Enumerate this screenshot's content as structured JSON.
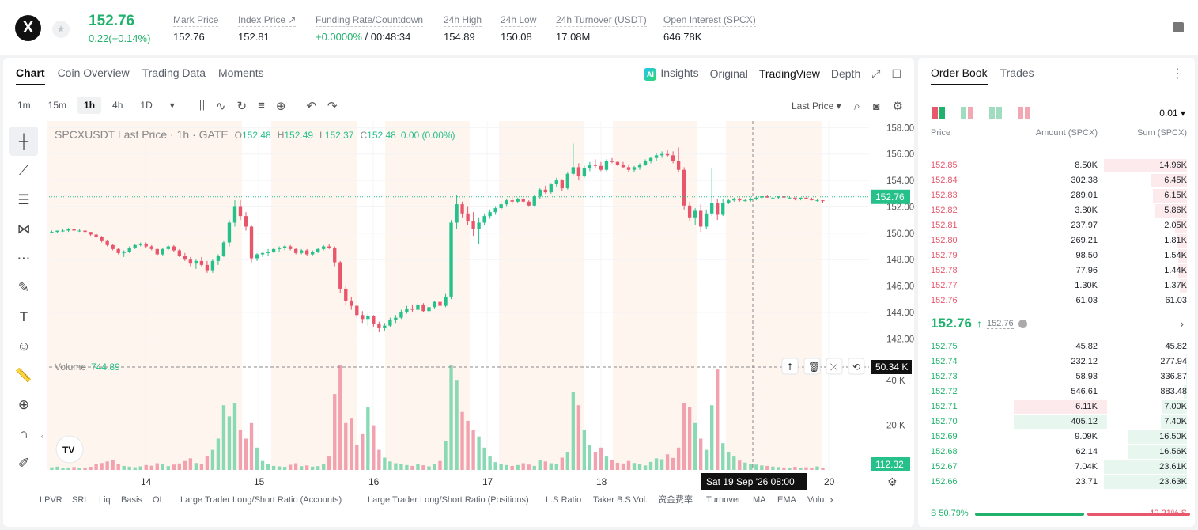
{
  "header": {
    "logo": "X",
    "last_price": "152.76",
    "change": "0.22(+0.14%)",
    "stats": [
      {
        "label": "Mark Price",
        "value": "152.76"
      },
      {
        "label": "Index Price ↗",
        "value": "152.81"
      },
      {
        "label": "Funding Rate/Countdown",
        "value_green": "+0.0000%",
        "value": " / 00:48:34"
      },
      {
        "label": "24h High",
        "value": "154.89"
      },
      {
        "label": "24h Low",
        "value": "150.08"
      },
      {
        "label": "24h Turnover (USDT)",
        "value": "17.08M"
      },
      {
        "label": "Open Interest (SPCX)",
        "value": "646.78K"
      }
    ]
  },
  "tabs": {
    "left": [
      "Chart",
      "Coin Overview",
      "Trading Data",
      "Moments"
    ],
    "right": [
      "Insights",
      "Original",
      "TradingView",
      "Depth"
    ],
    "ai_badge": "AI",
    "intervals": [
      "1m",
      "15m",
      "1h",
      "4h",
      "1D"
    ],
    "active_interval": "1h",
    "price_type": "Last Price ▾"
  },
  "chart": {
    "legend_symbol": "SPCXUSDT Last Price · 1h · GATE",
    "ohlc": [
      {
        "k": "O",
        "v": "152.48"
      },
      {
        "k": "H",
        "v": "152.49"
      },
      {
        "k": "L",
        "v": "152.37"
      },
      {
        "k": "C",
        "v": "152.48"
      }
    ],
    "change": "0.00 (0.00%)",
    "volume_label": "Volume",
    "volume_value": "744.89",
    "price_ticks": [
      "158.00",
      "156.00",
      "154.00",
      "152.00",
      "150.00",
      "148.00",
      "146.00",
      "144.00",
      "142.00"
    ],
    "last_price_tag": "152.76",
    "volume_ticks": [
      "40 K",
      "20 K"
    ],
    "volume_hover_tag": "50.34 K",
    "volume_last_tag": "112.32",
    "x_ticks": [
      "14",
      "15",
      "16",
      "17",
      "18",
      "20"
    ],
    "crosshair_date": "Sat 19 Sep '26   08:00",
    "indicators": [
      "LPVR",
      "SRL",
      "Liq",
      "Basis",
      "OI",
      "Large Trader Long/Short Ratio (Accounts)",
      "Large Trader Long/Short Ratio (Positions)",
      "L.S Ratio",
      "Taker B.S Vol.",
      "资金费率",
      "Turnover",
      "MA",
      "EMA",
      "Volu"
    ],
    "tv_logo": "TV"
  },
  "chart_data": {
    "type": "candlestick",
    "price_range": [
      141,
      158.5
    ],
    "colors": {
      "up": "#26c08a",
      "down": "#e8566b",
      "vol_up": "#8ad9b5",
      "vol_down": "#f1a2ae"
    },
    "candles": [
      [
        150.1,
        150.2,
        150.0,
        150.1
      ],
      [
        150.1,
        150.2,
        150.0,
        150.2
      ],
      [
        150.2,
        150.3,
        150.1,
        150.2
      ],
      [
        150.2,
        150.4,
        150.1,
        150.3
      ],
      [
        150.3,
        150.4,
        150.2,
        150.2
      ],
      [
        150.2,
        150.3,
        150.1,
        150.2
      ],
      [
        150.2,
        150.2,
        150.0,
        150.1
      ],
      [
        150.1,
        150.1,
        149.8,
        149.9
      ],
      [
        149.9,
        150.0,
        149.6,
        149.7
      ],
      [
        149.7,
        149.8,
        149.3,
        149.4
      ],
      [
        149.4,
        149.5,
        149.0,
        149.1
      ],
      [
        149.1,
        149.2,
        148.7,
        148.8
      ],
      [
        148.8,
        148.9,
        148.4,
        148.5
      ],
      [
        148.5,
        148.7,
        148.2,
        148.6
      ],
      [
        148.6,
        149.0,
        148.5,
        148.9
      ],
      [
        148.9,
        149.2,
        148.8,
        149.1
      ],
      [
        149.1,
        149.3,
        149.0,
        149.2
      ],
      [
        149.2,
        149.3,
        148.9,
        149.0
      ],
      [
        149.0,
        149.1,
        148.7,
        148.8
      ],
      [
        148.8,
        148.9,
        148.3,
        148.4
      ],
      [
        148.4,
        148.9,
        148.3,
        148.8
      ],
      [
        148.8,
        149.1,
        148.7,
        149.0
      ],
      [
        149.0,
        149.1,
        148.6,
        148.7
      ],
      [
        148.7,
        148.8,
        148.2,
        148.3
      ],
      [
        148.3,
        148.5,
        147.9,
        148.0
      ],
      [
        148.0,
        148.2,
        147.5,
        147.7
      ],
      [
        147.7,
        148.0,
        147.3,
        147.9
      ],
      [
        147.9,
        148.2,
        147.5,
        147.6
      ],
      [
        147.6,
        147.9,
        147.0,
        147.2
      ],
      [
        147.2,
        148.0,
        147.0,
        147.9
      ],
      [
        147.9,
        148.4,
        147.6,
        148.3
      ],
      [
        148.3,
        149.4,
        148.2,
        149.3
      ],
      [
        149.3,
        151.0,
        149.0,
        150.8
      ],
      [
        150.8,
        152.5,
        150.5,
        152.0
      ],
      [
        152.0,
        152.5,
        151.0,
        151.3
      ],
      [
        151.3,
        151.6,
        150.2,
        150.5
      ],
      [
        150.5,
        150.6,
        147.8,
        148.1
      ],
      [
        148.1,
        148.5,
        147.9,
        148.4
      ],
      [
        148.4,
        148.6,
        148.2,
        148.5
      ],
      [
        148.5,
        148.8,
        148.3,
        148.6
      ],
      [
        148.6,
        148.9,
        148.5,
        148.8
      ],
      [
        148.8,
        149.0,
        148.6,
        148.9
      ],
      [
        148.9,
        149.1,
        148.7,
        149.0
      ],
      [
        149.0,
        149.1,
        148.7,
        148.8
      ],
      [
        148.8,
        148.9,
        148.4,
        148.5
      ],
      [
        148.5,
        148.8,
        148.4,
        148.7
      ],
      [
        148.7,
        148.8,
        148.3,
        148.4
      ],
      [
        148.4,
        148.7,
        148.3,
        148.6
      ],
      [
        148.6,
        148.9,
        148.5,
        148.8
      ],
      [
        148.8,
        149.1,
        148.7,
        149.0
      ],
      [
        149.0,
        149.2,
        148.8,
        148.9
      ],
      [
        148.9,
        149.0,
        147.5,
        147.8
      ],
      [
        147.8,
        147.9,
        145.5,
        145.8
      ],
      [
        145.8,
        146.0,
        144.6,
        144.9
      ],
      [
        144.9,
        145.2,
        144.2,
        144.5
      ],
      [
        144.5,
        144.6,
        143.6,
        143.8
      ],
      [
        143.8,
        144.1,
        143.2,
        143.5
      ],
      [
        143.5,
        143.9,
        143.0,
        143.7
      ],
      [
        143.7,
        143.8,
        142.9,
        143.1
      ],
      [
        143.1,
        143.3,
        142.5,
        142.8
      ],
      [
        142.8,
        143.2,
        142.6,
        143.0
      ],
      [
        143.0,
        143.6,
        142.9,
        143.4
      ],
      [
        143.4,
        143.8,
        143.2,
        143.6
      ],
      [
        143.6,
        144.2,
        143.5,
        144.0
      ],
      [
        144.0,
        144.5,
        143.9,
        144.3
      ],
      [
        144.3,
        144.6,
        144.0,
        144.2
      ],
      [
        144.2,
        144.8,
        144.1,
        144.6
      ],
      [
        144.6,
        144.7,
        144.0,
        144.1
      ],
      [
        144.1,
        144.5,
        143.9,
        144.4
      ],
      [
        144.4,
        144.9,
        144.3,
        144.8
      ],
      [
        144.8,
        145.0,
        144.4,
        144.5
      ],
      [
        144.5,
        145.4,
        144.4,
        145.2
      ],
      [
        145.2,
        151.0,
        145.0,
        150.8
      ],
      [
        150.8,
        152.9,
        150.3,
        152.2
      ],
      [
        152.2,
        152.4,
        151.2,
        151.5
      ],
      [
        151.5,
        152.0,
        150.6,
        150.9
      ],
      [
        150.9,
        151.6,
        149.8,
        150.3
      ],
      [
        150.3,
        151.2,
        149.2,
        150.8
      ],
      [
        150.8,
        151.5,
        150.6,
        151.3
      ],
      [
        151.3,
        151.8,
        151.1,
        151.6
      ],
      [
        151.6,
        152.0,
        151.4,
        151.9
      ],
      [
        151.9,
        152.4,
        151.7,
        152.2
      ],
      [
        152.2,
        152.6,
        152.0,
        152.5
      ],
      [
        152.5,
        152.8,
        152.2,
        152.4
      ],
      [
        152.4,
        152.7,
        152.3,
        152.6
      ],
      [
        152.6,
        152.7,
        152.3,
        152.4
      ],
      [
        152.4,
        152.5,
        152.0,
        152.1
      ],
      [
        152.1,
        152.9,
        152.0,
        152.8
      ],
      [
        152.8,
        153.4,
        152.6,
        153.3
      ],
      [
        153.3,
        153.6,
        153.0,
        153.1
      ],
      [
        153.1,
        153.8,
        153.0,
        153.7
      ],
      [
        153.7,
        154.2,
        153.5,
        154.0
      ],
      [
        154.0,
        154.1,
        153.2,
        153.4
      ],
      [
        153.4,
        154.6,
        153.3,
        154.5
      ],
      [
        154.5,
        156.8,
        154.4,
        155.0
      ],
      [
        155.0,
        155.3,
        154.0,
        154.3
      ],
      [
        154.3,
        155.1,
        154.2,
        154.9
      ],
      [
        154.9,
        155.4,
        154.7,
        155.2
      ],
      [
        155.2,
        155.6,
        154.9,
        155.1
      ],
      [
        155.1,
        155.4,
        154.7,
        154.8
      ],
      [
        154.8,
        155.6,
        154.7,
        155.5
      ],
      [
        155.5,
        155.7,
        155.3,
        155.4
      ],
      [
        155.4,
        155.5,
        155.1,
        155.2
      ],
      [
        155.2,
        155.4,
        154.9,
        155.0
      ],
      [
        155.0,
        155.2,
        154.6,
        154.8
      ],
      [
        154.8,
        155.1,
        154.6,
        155.0
      ],
      [
        155.0,
        155.3,
        154.8,
        155.2
      ],
      [
        155.2,
        155.6,
        155.1,
        155.5
      ],
      [
        155.5,
        155.8,
        155.3,
        155.7
      ],
      [
        155.7,
        156.1,
        155.5,
        155.9
      ],
      [
        155.9,
        156.2,
        155.7,
        156.0
      ],
      [
        156.0,
        156.3,
        155.8,
        155.9
      ],
      [
        155.9,
        156.2,
        155.3,
        155.5
      ],
      [
        155.5,
        156.5,
        154.6,
        154.8
      ],
      [
        154.8,
        155.0,
        151.8,
        152.1
      ],
      [
        152.1,
        152.4,
        150.9,
        151.2
      ],
      [
        151.2,
        151.9,
        150.6,
        151.7
      ],
      [
        151.7,
        152.2,
        150.1,
        150.5
      ],
      [
        150.5,
        151.8,
        150.3,
        151.5
      ],
      [
        151.5,
        154.9,
        151.3,
        152.3
      ],
      [
        152.3,
        152.6,
        151.0,
        151.4
      ],
      [
        151.4,
        152.6,
        151.3,
        152.3
      ],
      [
        152.3,
        152.6,
        152.2,
        152.5
      ],
      [
        152.5,
        152.7,
        152.4,
        152.6
      ],
      [
        152.6,
        152.7,
        152.4,
        152.5
      ],
      [
        152.5,
        152.6,
        152.4,
        152.5
      ],
      [
        152.5,
        152.7,
        152.4,
        152.6
      ],
      [
        152.6,
        152.8,
        152.5,
        152.7
      ],
      [
        152.7,
        152.8,
        152.6,
        152.8
      ],
      [
        152.8,
        152.9,
        152.7,
        152.7
      ],
      [
        152.7,
        152.8,
        152.6,
        152.7
      ],
      [
        152.7,
        152.8,
        152.6,
        152.8
      ],
      [
        152.8,
        152.8,
        152.7,
        152.7
      ],
      [
        152.7,
        152.8,
        152.6,
        152.7
      ],
      [
        152.7,
        152.7,
        152.5,
        152.6
      ],
      [
        152.6,
        152.7,
        152.5,
        152.7
      ],
      [
        152.7,
        152.7,
        152.6,
        152.6
      ],
      [
        152.6,
        152.7,
        152.5,
        152.5
      ],
      [
        152.5,
        152.6,
        152.4,
        152.5
      ],
      [
        152.5,
        152.5,
        152.3,
        152.48
      ]
    ],
    "volumes": [
      1200,
      1500,
      900,
      1100,
      1300,
      800,
      1000,
      1400,
      2500,
      3100,
      3800,
      4500,
      2600,
      1800,
      1500,
      1200,
      1600,
      2200,
      1900,
      3000,
      2600,
      1700,
      2400,
      2900,
      4000,
      5200,
      3100,
      2800,
      6000,
      9000,
      14000,
      29000,
      24000,
      30000,
      18000,
      14000,
      21000,
      10000,
      4000,
      2500,
      1800,
      1600,
      1400,
      2300,
      3000,
      1700,
      2000,
      1500,
      1700,
      2500,
      6000,
      34000,
      47000,
      21000,
      23000,
      11000,
      16000,
      28000,
      20000,
      9000,
      5500,
      3800,
      3000,
      2600,
      2200,
      1800,
      2600,
      2100,
      1600,
      2800,
      4000,
      13000,
      47000,
      40000,
      26000,
      22000,
      18000,
      15000,
      10000,
      6000,
      3500,
      2600,
      2200,
      1800,
      2200,
      3000,
      2400,
      1800,
      4500,
      3800,
      3000,
      2700,
      5500,
      8000,
      35000,
      29000,
      18000,
      11000,
      8000,
      10000,
      6000,
      4500,
      3200,
      2900,
      4000,
      3100,
      2500,
      2000,
      3600,
      5200,
      4800,
      7000,
      5400,
      10000,
      30000,
      28000,
      21000,
      14000,
      9000,
      29000,
      45000,
      12000,
      8000,
      6000,
      4200,
      3300,
      2800,
      2400,
      2000,
      1800,
      1500,
      1300,
      1100,
      1000,
      1400,
      900,
      1200,
      800,
      1600,
      744
    ],
    "volume_max": 50000
  },
  "order_book": {
    "tabs": [
      "Order Book",
      "Trades"
    ],
    "precision": "0.01 ▾",
    "headers": [
      "Price",
      "Amount (SPCX)",
      "Sum (SPCX)"
    ],
    "asks": [
      {
        "p": "152.85",
        "a": "8.50K",
        "s": "14.96K",
        "depth": 1.0
      },
      {
        "p": "152.84",
        "a": "302.38",
        "s": "6.45K",
        "depth": 0.43
      },
      {
        "p": "152.83",
        "a": "289.01",
        "s": "6.15K",
        "depth": 0.41
      },
      {
        "p": "152.82",
        "a": "3.80K",
        "s": "5.86K",
        "depth": 0.39
      },
      {
        "p": "152.81",
        "a": "237.97",
        "s": "2.05K",
        "depth": 0.14
      },
      {
        "p": "152.80",
        "a": "269.21",
        "s": "1.81K",
        "depth": 0.12
      },
      {
        "p": "152.79",
        "a": "98.50",
        "s": "1.54K",
        "depth": 0.1
      },
      {
        "p": "152.78",
        "a": "77.96",
        "s": "1.44K",
        "depth": 0.1
      },
      {
        "p": "152.77",
        "a": "1.30K",
        "s": "1.37K",
        "depth": 0.09
      },
      {
        "p": "152.76",
        "a": "61.03",
        "s": "61.03",
        "depth": 0.0
      }
    ],
    "mid_price": "152.76",
    "mid_arrow": "↑",
    "mark": "152.76",
    "bids": [
      {
        "p": "152.75",
        "a": "45.82",
        "s": "45.82",
        "depth": 0.0
      },
      {
        "p": "152.74",
        "a": "232.12",
        "s": "277.94",
        "depth": 0.01
      },
      {
        "p": "152.73",
        "a": "58.93",
        "s": "336.87",
        "depth": 0.01
      },
      {
        "p": "152.72",
        "a": "546.61",
        "s": "883.48",
        "depth": 0.04
      },
      {
        "p": "152.71",
        "a": "6.11K",
        "s": "7.00K",
        "depth": 0.3,
        "hl": true
      },
      {
        "p": "152.70",
        "a": "405.12",
        "s": "7.40K",
        "depth": 0.31,
        "hl": true
      },
      {
        "p": "152.69",
        "a": "9.09K",
        "s": "16.50K",
        "depth": 0.7
      },
      {
        "p": "152.68",
        "a": "62.14",
        "s": "16.56K",
        "depth": 0.7
      },
      {
        "p": "152.67",
        "a": "7.04K",
        "s": "23.61K",
        "depth": 1.0
      },
      {
        "p": "152.66",
        "a": "23.71",
        "s": "23.63K",
        "depth": 1.0
      }
    ],
    "buy_ratio": "B 50.79%",
    "sell_ratio": "49.21% S",
    "buy_frac": 0.5079
  }
}
